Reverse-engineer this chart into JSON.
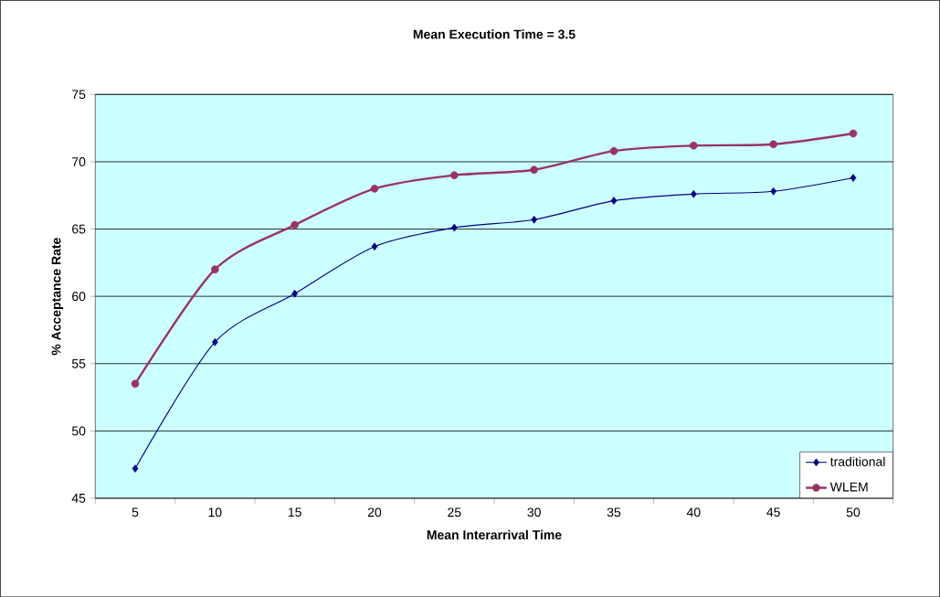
{
  "chart_data": {
    "type": "line",
    "title": "Mean Execution Time = 3.5",
    "xlabel": "Mean Interarrival Time",
    "ylabel": "% Acceptance Rate",
    "categories": [
      "5",
      "10",
      "15",
      "20",
      "25",
      "30",
      "35",
      "40",
      "45",
      "50"
    ],
    "series": [
      {
        "name": "traditional",
        "color": "#000080",
        "marker": "diamond",
        "values": [
          47.2,
          56.6,
          60.2,
          63.7,
          65.1,
          65.7,
          67.1,
          67.6,
          67.8,
          68.8
        ]
      },
      {
        "name": "WLEM",
        "color": "#993366",
        "marker": "circle",
        "values": [
          53.5,
          62.0,
          65.3,
          68.0,
          69.0,
          69.4,
          70.8,
          71.2,
          71.3,
          72.1
        ]
      }
    ],
    "ylim": [
      45,
      75
    ],
    "yticks": [
      45,
      50,
      55,
      60,
      65,
      70,
      75
    ],
    "grid": "y",
    "legend": "bottom right"
  }
}
